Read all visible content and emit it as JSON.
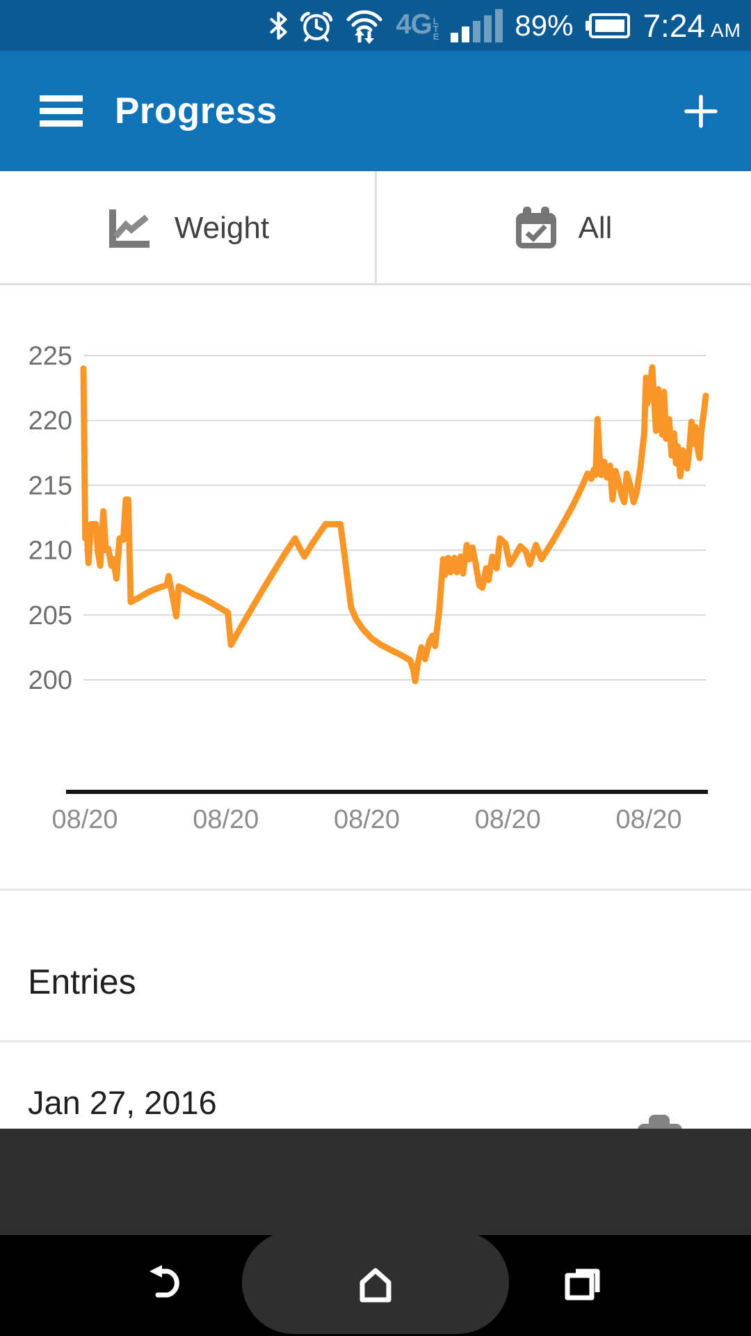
{
  "status_bar": {
    "time": "7:24",
    "time_period": "AM",
    "battery_percent": "89%",
    "network": "4G",
    "network_sub_letters": [
      "L",
      "T",
      "E"
    ],
    "icons": [
      "bluetooth-icon",
      "alarm-icon",
      "wifi-sync-icon",
      "cellular-signal-icon",
      "battery-icon"
    ]
  },
  "app_bar": {
    "title": "Progress"
  },
  "filter_bar": {
    "metric_label": "Weight",
    "range_label": "All"
  },
  "chart_data": {
    "type": "line",
    "series_name": "Weight",
    "title": "",
    "xlabel": "",
    "ylabel": "",
    "y_ticks": [
      225,
      220,
      215,
      210,
      205,
      200
    ],
    "x_tick_labels": [
      "08/20",
      "08/20",
      "08/20",
      "08/20",
      "08/20"
    ],
    "ylim": [
      197.5,
      226.5
    ],
    "grid": true,
    "legend": false,
    "line_color": "#f89728",
    "gridline_color": "#d9d9d9",
    "axis_color": "#151515",
    "tick_color_y": "#6e6e6e",
    "tick_color_x": "#8c8c8c",
    "points": [
      [
        0,
        224
      ],
      [
        0.003,
        210.9
      ],
      [
        0.006,
        211.1
      ],
      [
        0.008,
        209
      ],
      [
        0.012,
        212
      ],
      [
        0.02,
        212
      ],
      [
        0.023,
        209.9
      ],
      [
        0.027,
        208.8
      ],
      [
        0.032,
        213
      ],
      [
        0.036,
        210
      ],
      [
        0.04,
        210.1
      ],
      [
        0.045,
        208.8
      ],
      [
        0.048,
        209.3
      ],
      [
        0.053,
        207.8
      ],
      [
        0.058,
        210.9
      ],
      [
        0.064,
        210.8
      ],
      [
        0.068,
        213.9
      ],
      [
        0.072,
        213.9
      ],
      [
        0.076,
        206
      ],
      [
        0.084,
        206.2
      ],
      [
        0.095,
        206.5
      ],
      [
        0.106,
        206.8
      ],
      [
        0.121,
        207.1
      ],
      [
        0.134,
        207.3
      ],
      [
        0.137,
        208
      ],
      [
        0.145,
        206
      ],
      [
        0.149,
        204.9
      ],
      [
        0.153,
        207.2
      ],
      [
        0.162,
        207
      ],
      [
        0.177,
        206.6
      ],
      [
        0.192,
        206.3
      ],
      [
        0.207,
        205.9
      ],
      [
        0.221,
        205.5
      ],
      [
        0.232,
        205.2
      ],
      [
        0.237,
        202.7
      ],
      [
        0.251,
        203.9
      ],
      [
        0.268,
        205.3
      ],
      [
        0.285,
        206.7
      ],
      [
        0.304,
        208.2
      ],
      [
        0.322,
        209.6
      ],
      [
        0.34,
        210.9
      ],
      [
        0.346,
        210.3
      ],
      [
        0.355,
        209.5
      ],
      [
        0.369,
        210.6
      ],
      [
        0.382,
        211.5
      ],
      [
        0.389,
        212
      ],
      [
        0.413,
        212
      ],
      [
        0.419,
        209.8
      ],
      [
        0.425,
        207.5
      ],
      [
        0.43,
        205.6
      ],
      [
        0.438,
        204.7
      ],
      [
        0.449,
        203.9
      ],
      [
        0.463,
        203.2
      ],
      [
        0.478,
        202.7
      ],
      [
        0.494,
        202.3
      ],
      [
        0.511,
        201.9
      ],
      [
        0.525,
        201.5
      ],
      [
        0.53,
        200.8
      ],
      [
        0.533,
        199.9
      ],
      [
        0.537,
        201.2
      ],
      [
        0.543,
        202.5
      ],
      [
        0.549,
        201.6
      ],
      [
        0.556,
        203
      ],
      [
        0.561,
        203.4
      ],
      [
        0.565,
        202.6
      ],
      [
        0.572,
        205.5
      ],
      [
        0.578,
        209.3
      ],
      [
        0.581,
        208.1
      ],
      [
        0.586,
        209.4
      ],
      [
        0.59,
        208.3
      ],
      [
        0.596,
        209.4
      ],
      [
        0.6,
        208.3
      ],
      [
        0.606,
        209.5
      ],
      [
        0.61,
        208.2
      ],
      [
        0.616,
        210.4
      ],
      [
        0.62,
        209.3
      ],
      [
        0.625,
        210.2
      ],
      [
        0.63,
        209
      ],
      [
        0.636,
        207.3
      ],
      [
        0.641,
        207.1
      ],
      [
        0.647,
        208.6
      ],
      [
        0.651,
        207.7
      ],
      [
        0.657,
        209.5
      ],
      [
        0.664,
        208.6
      ],
      [
        0.669,
        210.9
      ],
      [
        0.678,
        210.5
      ],
      [
        0.685,
        208.9
      ],
      [
        0.694,
        209.6
      ],
      [
        0.702,
        210.3
      ],
      [
        0.711,
        209.9
      ],
      [
        0.717,
        208.9
      ],
      [
        0.727,
        210.4
      ],
      [
        0.736,
        209.3
      ],
      [
        0.753,
        210.6
      ],
      [
        0.77,
        212
      ],
      [
        0.787,
        213.5
      ],
      [
        0.802,
        215
      ],
      [
        0.81,
        215.9
      ],
      [
        0.816,
        215.5
      ],
      [
        0.82,
        216.2
      ],
      [
        0.823,
        215.8
      ],
      [
        0.826,
        220.1
      ],
      [
        0.829,
        217.4
      ],
      [
        0.832,
        215.8
      ],
      [
        0.837,
        216.8
      ],
      [
        0.841,
        215.6
      ],
      [
        0.846,
        216.5
      ],
      [
        0.85,
        213.9
      ],
      [
        0.855,
        216.1
      ],
      [
        0.859,
        215.4
      ],
      [
        0.865,
        214.2
      ],
      [
        0.869,
        213.7
      ],
      [
        0.873,
        215.9
      ],
      [
        0.878,
        215.1
      ],
      [
        0.884,
        213.7
      ],
      [
        0.889,
        214.5
      ],
      [
        0.895,
        216.4
      ],
      [
        0.901,
        219
      ],
      [
        0.904,
        223.3
      ],
      [
        0.906,
        221.3
      ],
      [
        0.91,
        222.6
      ],
      [
        0.914,
        224.1
      ],
      [
        0.917,
        221.5
      ],
      [
        0.92,
        219.2
      ],
      [
        0.924,
        222.4
      ],
      [
        0.927,
        219.8
      ],
      [
        0.93,
        218.9
      ],
      [
        0.933,
        222.2
      ],
      [
        0.936,
        218.6
      ],
      [
        0.941,
        220.1
      ],
      [
        0.945,
        217.3
      ],
      [
        0.949,
        219
      ],
      [
        0.952,
        216.7
      ],
      [
        0.955,
        218
      ],
      [
        0.959,
        215.7
      ],
      [
        0.963,
        217.7
      ],
      [
        0.966,
        216.6
      ],
      [
        0.97,
        216.3
      ],
      [
        0.973,
        217.5
      ],
      [
        0.977,
        219.9
      ],
      [
        0.98,
        218.2
      ],
      [
        0.983,
        219.5
      ],
      [
        0.987,
        217.8
      ],
      [
        0.99,
        217.1
      ],
      [
        0.993,
        219.2
      ],
      [
        0.997,
        220.7
      ],
      [
        1,
        221.9
      ]
    ]
  },
  "entries_section": {
    "heading": "Entries",
    "items": [
      {
        "date": "Jan 27, 2016",
        "has_photo": true
      }
    ]
  },
  "nav_bar": {
    "icons": [
      "back-icon",
      "home-icon",
      "recents-icon"
    ]
  },
  "colors": {
    "status_bar_bg": "#0b5a94",
    "app_bar_bg": "#1173b7",
    "chart_line": "#f89728",
    "overlay": "#2f2f2f",
    "nav_bg": "#000000"
  }
}
